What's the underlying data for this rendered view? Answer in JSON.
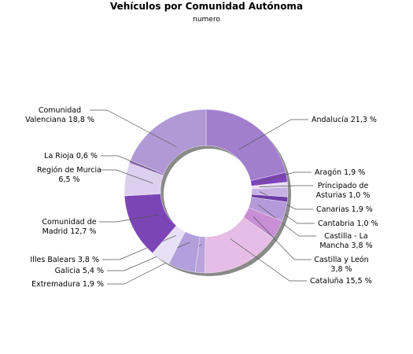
{
  "chart_data": {
    "type": "pie",
    "donut": true,
    "title": "Vehículos por Comunidad Autónoma",
    "subtitle": "numero",
    "slices": [
      {
        "label": [
          "Andalucía 21,3 %"
        ],
        "value": 21.3,
        "color": "#a27fcd"
      },
      {
        "label": [
          "Aragón 1,9 %"
        ],
        "value": 1.9,
        "color": "#7e45ba"
      },
      {
        "label": [
          "Principado de",
          "Asturias 1,0 %"
        ],
        "value": 1.0,
        "color": "#e9def5"
      },
      {
        "label": [
          "Canarias 1,9 %"
        ],
        "value": 1.9,
        "color": "#c7b1e3"
      },
      {
        "label": [
          "Cantabria 1,0 %"
        ],
        "value": 1.0,
        "color": "#6e3ca8"
      },
      {
        "label": [
          "Castilla - La",
          "Mancha 3,8 %"
        ],
        "value": 3.8,
        "color": "#b49ad8"
      },
      {
        "label": [
          "Castilla y León",
          "3,8 %"
        ],
        "value": 3.8,
        "color": "#c98fd5"
      },
      {
        "label": [
          "Cataluña 15,5 %"
        ],
        "value": 15.5,
        "color": "#e6bde4"
      },
      {
        "label": [
          "Extremadura 1,9 %"
        ],
        "value": 1.9,
        "color": "#b9a3dc"
      },
      {
        "label": [
          "Galicia 5,4 %"
        ],
        "value": 5.4,
        "color": "#b29fdc"
      },
      {
        "label": [
          "Illes Balears 3,8 %"
        ],
        "value": 3.8,
        "color": "#e8e0f4"
      },
      {
        "label": [
          "Comunidad de",
          "Madrid 12,7 %"
        ],
        "value": 12.7,
        "color": "#7c45b6"
      },
      {
        "label": [
          "Región de Murcia",
          "6,5 %"
        ],
        "value": 6.5,
        "color": "#ddd0ee"
      },
      {
        "label": [
          "La Rioja 0,6 %"
        ],
        "value": 0.6,
        "color": "#9b73c7"
      },
      {
        "label": [
          "Comunidad",
          "Valenciana 18,8 %"
        ],
        "value": 18.8,
        "color": "#b199d6"
      }
    ],
    "start": "top",
    "direction": "clockwise"
  }
}
